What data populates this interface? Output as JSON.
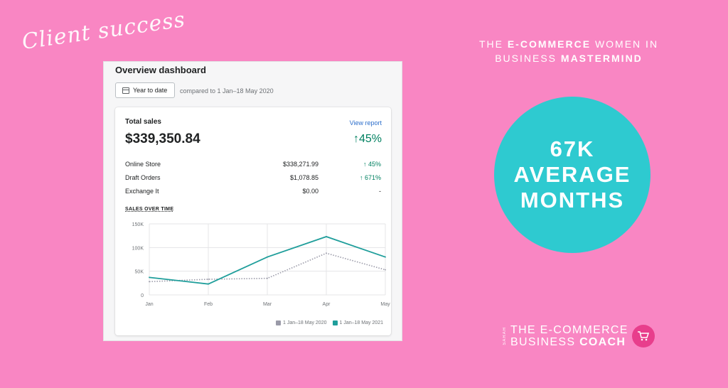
{
  "promo": {
    "script_title": "Client success",
    "mastermind": [
      "THE",
      "E-COMMERCE",
      "WOMEN IN",
      "BUSINESS",
      "MASTERMIND"
    ],
    "circle": [
      "67K",
      "AVERAGE",
      "MONTHS"
    ],
    "brand": {
      "sarah": "SARAH",
      "line1": "THE E-COMMERCE",
      "line2_a": "BUSINESS",
      "line2_b": "COACH"
    }
  },
  "dashboard": {
    "title": "Overview dashboard",
    "date_button": "Year to date",
    "compared": "compared to 1 Jan–18 May 2020",
    "card": {
      "label": "Total sales",
      "view_report": "View report",
      "total": "$339,350.84",
      "change": "↑45%",
      "rows": [
        {
          "name": "Online Store",
          "amount": "$338,271.99",
          "change": "↑ 45%"
        },
        {
          "name": "Draft Orders",
          "amount": "$1,078.85",
          "change": "↑ 671%"
        },
        {
          "name": "Exchange It",
          "amount": "$0.00",
          "change": "-"
        }
      ],
      "sales_over_time": "SALES OVER TIME"
    }
  },
  "colors": {
    "background": "#f986c3",
    "accent": "#2ecad0",
    "line_2021": "#1f9e9b",
    "line_2020": "#9a9aa8"
  },
  "chart_data": {
    "type": "line",
    "x": [
      "Jan",
      "Feb",
      "Mar",
      "Apr",
      "May"
    ],
    "yticks": [
      "0",
      "50K",
      "100K",
      "150K"
    ],
    "ylim": [
      0,
      150000
    ],
    "grid": true,
    "legend": "bottom-right",
    "series": [
      {
        "name": "1 Jan–18 May 2020",
        "values": [
          28000,
          33000,
          35000,
          88000,
          53000
        ],
        "style": "dotted",
        "color": "#9a9aa8"
      },
      {
        "name": "1 Jan–18 May 2021",
        "values": [
          37000,
          23000,
          80000,
          123000,
          80000
        ],
        "style": "solid",
        "color": "#1f9e9b"
      }
    ]
  }
}
